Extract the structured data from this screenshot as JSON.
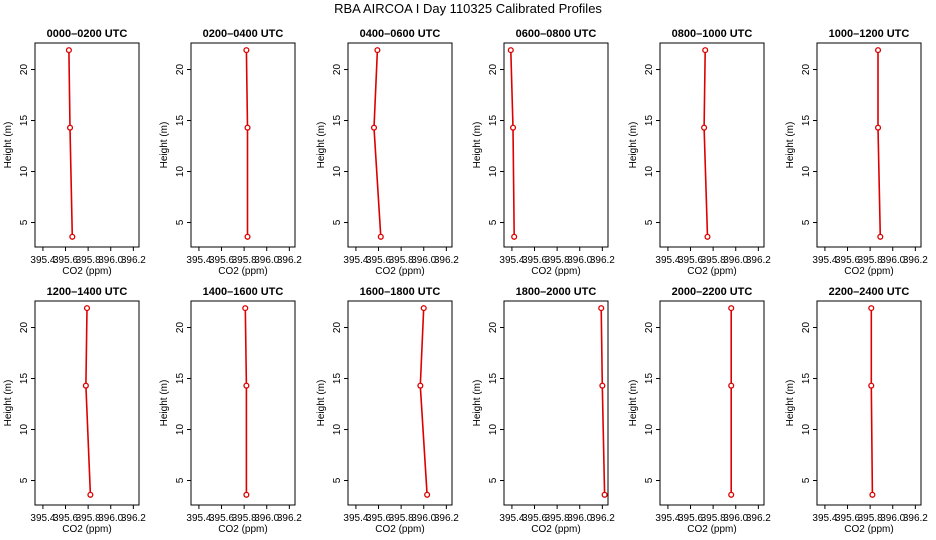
{
  "title": "RBA AIRCOA I  Day 110325  Calibrated Profiles",
  "chart_data": {
    "type": "line",
    "layout": "2 rows x 6 panels",
    "xlabel": "CO2 (ppm)",
    "ylabel": "Height (m)",
    "xlim": [
      395.33,
      396.25
    ],
    "ylim": [
      2.6,
      22.6
    ],
    "xticks": [
      "395.4",
      "395.6",
      "395.8",
      "396.0",
      "396.2"
    ],
    "yticks": [
      "5",
      "10",
      "15",
      "20"
    ],
    "heights": [
      3.6,
      14.3,
      21.9
    ],
    "line_color": "#dd0000",
    "panels": [
      {
        "title": "0000–0200 UTC",
        "co2": [
          395.66,
          395.64,
          395.63
        ]
      },
      {
        "title": "0200–0400 UTC",
        "co2": [
          395.83,
          395.83,
          395.82
        ]
      },
      {
        "title": "0400–0600 UTC",
        "co2": [
          395.62,
          395.56,
          395.59
        ]
      },
      {
        "title": "0600–0800 UTC",
        "co2": [
          395.42,
          395.41,
          395.39
        ]
      },
      {
        "title": "0800–1000 UTC",
        "co2": [
          395.75,
          395.72,
          395.73
        ]
      },
      {
        "title": "1000–1200 UTC",
        "co2": [
          395.89,
          395.87,
          395.87
        ]
      },
      {
        "title": "1200–1400 UTC",
        "co2": [
          395.82,
          395.78,
          395.79
        ]
      },
      {
        "title": "1400–1600 UTC",
        "co2": [
          395.82,
          395.82,
          395.81
        ]
      },
      {
        "title": "1600–1800 UTC",
        "co2": [
          396.03,
          395.97,
          396.0
        ]
      },
      {
        "title": "1800–2000 UTC",
        "co2": [
          396.22,
          396.2,
          396.19
        ]
      },
      {
        "title": "2000–2200 UTC",
        "co2": [
          395.96,
          395.96,
          395.96
        ]
      },
      {
        "title": "2200–2400 UTC",
        "co2": [
          395.82,
          395.81,
          395.81
        ]
      }
    ]
  }
}
